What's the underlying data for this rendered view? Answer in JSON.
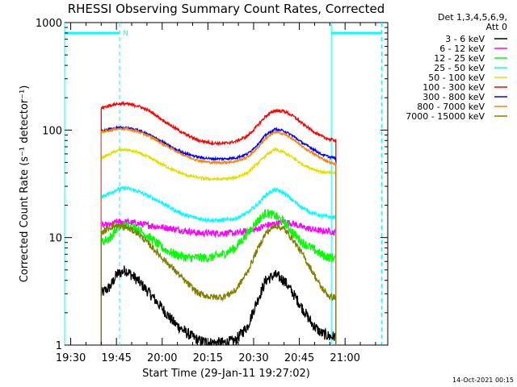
{
  "chart_data": {
    "type": "line",
    "title": "RHESSI Observing Summary Count Rates, Corrected",
    "xlabel": "Start Time (29-Jan-11 19:27:02)",
    "ylabel": "Corrected Count Rate (s⁻¹ detector⁻¹)",
    "ylog": true,
    "ylim": [
      1,
      1000
    ],
    "xlim_minutes": [
      -2,
      104
    ],
    "x_tick_labels": [
      "19:30",
      "19:45",
      "20:00",
      "20:15",
      "20:30",
      "20:45",
      "21:00"
    ],
    "x_tick_minutes": [
      0,
      15,
      30,
      45,
      60,
      75,
      90
    ],
    "y_tick_labels": [
      "1",
      "10",
      "100",
      "1000"
    ],
    "y_tick_values": [
      1,
      10,
      100,
      1000
    ],
    "x_unit_note": "x values are minutes after 19:30 UT",
    "legend_header": [
      "Det 1,3,4,5,6,9,",
      "Att 0"
    ],
    "legend_position": "right",
    "stamp": "14-Oct-2021 00:15",
    "night_marker_label": "N",
    "night_bars": [
      {
        "from": -2,
        "to": 16
      },
      {
        "from": 85.5,
        "to": 102
      }
    ],
    "vertical_markers": [
      {
        "x": -2,
        "style": "solid",
        "color": "#00ffff"
      },
      {
        "x": 16,
        "style": "dashed",
        "color": "#00ffff"
      },
      {
        "x": 85.5,
        "style": "solid",
        "color": "#00ffff"
      },
      {
        "x": 102,
        "style": "dashed",
        "color": "#00ffff"
      }
    ],
    "data_window": {
      "start": 10,
      "end": 87
    },
    "time_points": [
      10,
      13,
      15,
      18,
      22,
      26,
      30,
      34,
      38,
      42,
      46,
      50,
      54,
      58,
      61,
      64,
      67,
      70,
      73,
      76,
      79,
      82,
      85,
      87
    ],
    "series": [
      {
        "name": "3 - 6 keV",
        "color": "#000000",
        "noise": 0.12,
        "values": [
          3,
          3.5,
          4.5,
          5,
          4,
          3,
          2.2,
          1.6,
          1.3,
          1.1,
          1.05,
          1.05,
          1.1,
          1.5,
          2.5,
          4,
          4.5,
          4,
          3,
          2.2,
          1.6,
          1.3,
          1.2,
          1.2
        ]
      },
      {
        "name": "6 - 12 keV",
        "color": "#ff00ff",
        "noise": 0.07,
        "values": [
          13,
          13,
          14,
          14,
          13.5,
          13,
          12.5,
          12,
          11.5,
          11,
          11,
          11,
          11,
          11.5,
          12,
          13,
          13.5,
          14,
          13.5,
          12.5,
          12,
          11.5,
          11.5,
          11
        ]
      },
      {
        "name": "12 - 25 keV",
        "color": "#00ff00",
        "noise": 0.1,
        "values": [
          9,
          10,
          12,
          13,
          12,
          10,
          8,
          7,
          6.5,
          6.5,
          6.5,
          7,
          8,
          11,
          14,
          17,
          16,
          14,
          11,
          9,
          8,
          7,
          6.5,
          6.5
        ]
      },
      {
        "name": "25 - 50 keV",
        "color": "#00ffff",
        "noise": 0.04,
        "values": [
          24,
          26,
          28,
          29,
          27,
          24,
          21,
          18,
          16,
          15,
          14.5,
          14.5,
          15,
          17,
          20,
          25,
          28,
          26,
          22,
          19,
          17,
          16,
          15.5,
          15.5
        ]
      },
      {
        "name": "50 - 100 keV",
        "color": "#e0e000",
        "noise": 0.03,
        "values": [
          55,
          60,
          64,
          66,
          62,
          55,
          48,
          42,
          38,
          36,
          35,
          35,
          36,
          40,
          48,
          58,
          66,
          62,
          55,
          48,
          44,
          41,
          40,
          40
        ]
      },
      {
        "name": "100 - 300 keV",
        "color": "#ff0000",
        "noise": 0.03,
        "values": [
          160,
          170,
          175,
          176,
          168,
          150,
          125,
          105,
          90,
          80,
          76,
          75,
          78,
          88,
          108,
          135,
          152,
          150,
          135,
          115,
          100,
          88,
          82,
          80
        ]
      },
      {
        "name": "300 - 800 keV",
        "color": "#0000ff",
        "noise": 0.025,
        "values": [
          98,
          102,
          105,
          105,
          100,
          90,
          78,
          67,
          60,
          56,
          54,
          54,
          55,
          60,
          72,
          90,
          102,
          98,
          88,
          76,
          68,
          60,
          56,
          55
        ]
      },
      {
        "name": "800 - 7000 keV",
        "color": "#ff8000",
        "noise": 0.025,
        "values": [
          96,
          100,
          103,
          103,
          97,
          87,
          75,
          65,
          57,
          52,
          50,
          50,
          51,
          56,
          67,
          84,
          96,
          92,
          82,
          70,
          62,
          55,
          50,
          48
        ]
      },
      {
        "name": "7000 - 15000 keV",
        "color": "#808000",
        "noise": 0.07,
        "values": [
          11,
          12.5,
          13,
          12.5,
          11,
          8.5,
          6.5,
          5,
          3.8,
          3,
          2.8,
          2.8,
          3.2,
          4.8,
          7.5,
          11,
          13,
          12,
          9.5,
          7,
          5,
          3.5,
          2.8,
          2.8
        ]
      }
    ]
  }
}
